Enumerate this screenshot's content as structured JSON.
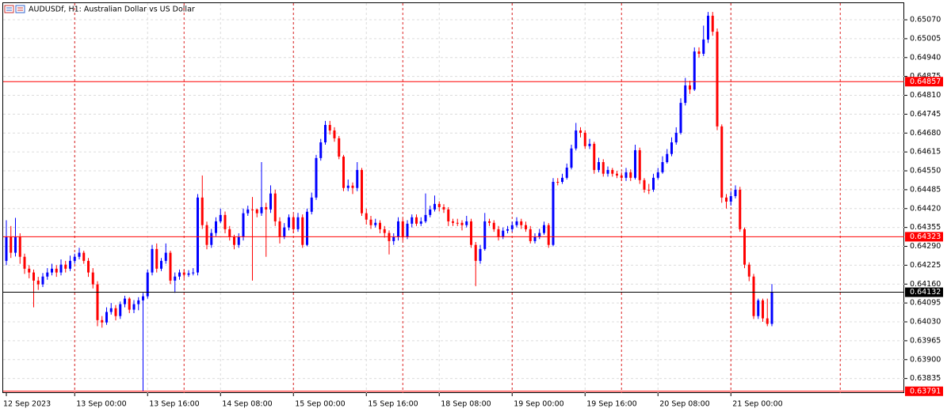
{
  "chart_data": {
    "type": "candlestick",
    "title": "AUDUSDf, H1:  Australian Dollar vs US Dollar",
    "up_color": "#0000ff",
    "down_color": "#ff0000",
    "grid": true,
    "ylim": [
      0.63785,
      0.6513
    ],
    "yticks": [
      {
        "value": 0.6507,
        "label": "0.65070"
      },
      0.65005,
      {
        "value": 0.6494,
        "label": "0.64940"
      },
      0.64875,
      {
        "value": 0.6481,
        "label": "0.64810"
      },
      0.64745,
      {
        "value": 0.6468,
        "label": "0.64680"
      },
      0.64615,
      {
        "value": 0.6455,
        "label": "0.64550"
      },
      0.64485,
      {
        "value": 0.6442,
        "label": "0.64420"
      },
      0.64355,
      {
        "value": 0.6429,
        "label": "0.64290"
      },
      0.64225,
      {
        "value": 0.6416,
        "label": "0.64160"
      },
      0.64095,
      {
        "value": 0.6403,
        "label": "0.64030"
      },
      0.63965,
      {
        "value": 0.639,
        "label": "0.63900"
      },
      0.63835
    ],
    "levels": [
      {
        "value": 0.64857,
        "color": "#ff0000"
      },
      {
        "value": 0.64323,
        "color": "#ff0000"
      },
      {
        "value": 0.64132,
        "color": "#000000"
      },
      {
        "value": 0.63791,
        "color": "#ff0000"
      }
    ],
    "categories": [
      "12 Sep 2023",
      null,
      null,
      null,
      null,
      null,
      null,
      null,
      null,
      null,
      null,
      null,
      null,
      null,
      null,
      "13 Sep 00:00",
      null,
      null,
      null,
      null,
      null,
      null,
      null,
      null,
      null,
      null,
      null,
      null,
      null,
      null,
      null,
      "13 Sep 16:00",
      null,
      null,
      null,
      null,
      null,
      null,
      null,
      null,
      null,
      null,
      null,
      null,
      null,
      null,
      null,
      "14 Sep 08:00",
      null,
      null,
      null,
      null,
      null,
      null,
      null,
      null,
      null,
      null,
      null,
      null,
      null,
      null,
      null,
      "15 Sep 00:00",
      null,
      null,
      null,
      null,
      null,
      null,
      null,
      null,
      null,
      null,
      null,
      null,
      null,
      null,
      null,
      "15 Sep 16:00",
      null,
      null,
      null,
      null,
      null,
      null,
      null,
      null,
      null,
      null,
      null,
      null,
      null,
      null,
      null,
      "18 Sep 08:00",
      null,
      null,
      null,
      null,
      null,
      null,
      null,
      null,
      null,
      null,
      null,
      null,
      null,
      null,
      null,
      "19 Sep 00:00",
      null,
      null,
      null,
      null,
      null,
      null,
      null,
      null,
      null,
      null,
      null,
      null,
      null,
      null,
      null,
      "19 Sep 16:00",
      null,
      null,
      null,
      null,
      null,
      null,
      null,
      null,
      null,
      null,
      null,
      null,
      null,
      null,
      null,
      "20 Sep 08:00",
      null,
      null,
      null,
      null,
      null,
      null,
      null,
      null,
      null,
      null,
      null,
      null,
      null,
      null,
      null,
      "21 Sep 00:00",
      null,
      null,
      null,
      null,
      null,
      null,
      null,
      null,
      null
    ],
    "open": [
      0.6424,
      0.64322,
      0.64268,
      0.64322,
      0.64254,
      0.64213,
      0.642,
      0.64172,
      0.64159,
      0.64186,
      0.642,
      0.64213,
      0.642,
      0.64227,
      0.64213,
      0.6424,
      0.64254,
      0.64268,
      0.6424,
      0.642,
      0.64159,
      0.64036,
      0.64028,
      0.64064,
      0.64077,
      0.6405,
      0.64091,
      0.6411,
      0.64072,
      0.64091,
      0.64104,
      0.64118,
      0.642,
      0.64281,
      0.64213,
      0.6424,
      0.64268,
      0.64172,
      0.64186,
      0.642,
      0.64192,
      0.64197,
      0.642,
      0.64458,
      0.64363,
      0.64295,
      0.64336,
      0.64376,
      0.64398,
      0.64349,
      0.64322,
      0.64295,
      0.64322,
      0.64404,
      0.64417,
      0.64417,
      0.64404,
      0.64425,
      0.64417,
      0.64472,
      0.64376,
      0.64322,
      0.64355,
      0.6439,
      0.64349,
      0.6439,
      0.64295,
      0.64409,
      0.64458,
      0.64594,
      0.64648,
      0.64708,
      0.64689,
      0.64662,
      0.64599,
      0.64491,
      0.64499,
      0.64491,
      0.64553,
      0.64404,
      0.64382,
      0.64363,
      0.64371,
      0.64349,
      0.64336,
      0.64308,
      0.64322,
      0.64376,
      0.64322,
      0.64368,
      0.6439,
      0.64368,
      0.64376,
      0.64398,
      0.64417,
      0.64436,
      0.64425,
      0.64417,
      0.64376,
      0.64371,
      0.64371,
      0.64363,
      0.64376,
      0.64295,
      0.6424,
      0.64281,
      0.64376,
      0.64371,
      0.64349,
      0.64322,
      0.64344,
      0.64349,
      0.64363,
      0.64376,
      0.64363,
      0.64349,
      0.64308,
      0.64322,
      0.64336,
      0.64363,
      0.64295,
      0.64512,
      0.64512,
      0.64526,
      0.64561,
      0.64627,
      0.64689,
      0.64681,
      0.64635,
      0.64643,
      0.64553,
      0.6458,
      0.6454,
      0.64553,
      0.6454,
      0.64534,
      0.64526,
      0.64545,
      0.64526,
      0.64621,
      0.64518,
      0.64485,
      0.64485,
      0.64526,
      0.64545,
      0.6458,
      0.64608,
      0.64648,
      0.64681,
      0.64784,
      0.64844,
      0.6483,
      0.64961,
      0.64953,
      0.65002,
      0.65084,
      0.65029,
      0.64703,
      0.64458,
      0.64444,
      0.64463,
      0.64485,
      0.64349,
      0.64227,
      0.64186,
      0.6405,
      0.64104,
      0.64042,
      0.64023
    ],
    "high": [
      0.6438,
      0.6436,
      0.64388,
      0.64335,
      0.64265,
      0.64225,
      0.6421,
      0.64185,
      0.64198,
      0.64215,
      0.6423,
      0.64225,
      0.64245,
      0.6424,
      0.64258,
      0.64265,
      0.64285,
      0.64275,
      0.6425,
      0.64215,
      0.6417,
      0.6405,
      0.6408,
      0.64095,
      0.64088,
      0.641,
      0.6412,
      0.64115,
      0.64105,
      0.64115,
      0.6413,
      0.6421,
      0.64295,
      0.643,
      0.6425,
      0.643,
      0.64275,
      0.642,
      0.6421,
      0.6421,
      0.64208,
      0.64215,
      0.6447,
      0.64534,
      0.64375,
      0.6435,
      0.6439,
      0.6442,
      0.6441,
      0.6436,
      0.6433,
      0.64335,
      0.6442,
      0.6443,
      0.6446,
      0.6442,
      0.6458,
      0.6444,
      0.645,
      0.64485,
      0.6439,
      0.6437,
      0.644,
      0.644,
      0.64405,
      0.644,
      0.6442,
      0.64475,
      0.64605,
      0.6466,
      0.64722,
      0.64722,
      0.647,
      0.6467,
      0.64605,
      0.6452,
      0.6451,
      0.6458,
      0.6456,
      0.6442,
      0.64395,
      0.64385,
      0.6438,
      0.6436,
      0.64345,
      0.64335,
      0.6439,
      0.64385,
      0.6438,
      0.644,
      0.644,
      0.6439,
      0.64472,
      0.6443,
      0.64465,
      0.64445,
      0.64435,
      0.64425,
      0.64385,
      0.64385,
      0.6438,
      0.64395,
      0.64385,
      0.64305,
      0.64295,
      0.64405,
      0.64385,
      0.6438,
      0.6436,
      0.64355,
      0.6436,
      0.64375,
      0.6439,
      0.64385,
      0.64375,
      0.6436,
      0.64335,
      0.6435,
      0.64375,
      0.6437,
      0.64525,
      0.64525,
      0.6454,
      0.64575,
      0.6464,
      0.64715,
      0.647,
      0.6469,
      0.6466,
      0.6465,
      0.64595,
      0.6459,
      0.64565,
      0.6456,
      0.6455,
      0.64545,
      0.6456,
      0.64555,
      0.6464,
      0.6463,
      0.64525,
      0.64505,
      0.6454,
      0.6456,
      0.646,
      0.64625,
      0.64665,
      0.647,
      0.648,
      0.6487,
      0.6486,
      0.64975,
      0.64975,
      0.6505,
      0.65097,
      0.65097,
      0.6504,
      0.6471,
      0.6447,
      0.6448,
      0.645,
      0.64495,
      0.64355,
      0.64235,
      0.64195,
      0.6411,
      0.6411,
      0.6411,
      0.6416
    ],
    "low": [
      0.64225,
      0.6425,
      0.64255,
      0.6423,
      0.64195,
      0.6418,
      0.6408,
      0.6414,
      0.6415,
      0.64175,
      0.6419,
      0.64185,
      0.6419,
      0.642,
      0.64205,
      0.6423,
      0.64245,
      0.6423,
      0.64185,
      0.64145,
      0.64015,
      0.6401,
      0.6402,
      0.64055,
      0.64035,
      0.6404,
      0.6408,
      0.6406,
      0.6406,
      0.6407,
      0.63791,
      0.6411,
      0.6419,
      0.642,
      0.64205,
      0.6423,
      0.6416,
      0.6413,
      0.64175,
      0.6418,
      0.64185,
      0.6419,
      0.6419,
      0.6435,
      0.6428,
      0.64285,
      0.64325,
      0.6437,
      0.64335,
      0.6431,
      0.6428,
      0.64285,
      0.6431,
      0.64395,
      0.64172,
      0.6439,
      0.64395,
      0.64254,
      0.64405,
      0.6436,
      0.643,
      0.64315,
      0.64345,
      0.64335,
      0.6434,
      0.64285,
      0.6429,
      0.644,
      0.6445,
      0.64585,
      0.6464,
      0.64675,
      0.6465,
      0.6459,
      0.6448,
      0.6448,
      0.6447,
      0.6448,
      0.64395,
      0.64365,
      0.6435,
      0.64355,
      0.64335,
      0.6432,
      0.64262,
      0.64295,
      0.6431,
      0.6431,
      0.64315,
      0.64355,
      0.6436,
      0.6436,
      0.6437,
      0.6439,
      0.6441,
      0.6441,
      0.64405,
      0.6436,
      0.6436,
      0.6436,
      0.64345,
      0.64355,
      0.64285,
      0.64153,
      0.6423,
      0.64275,
      0.6436,
      0.6434,
      0.6431,
      0.64315,
      0.64335,
      0.6434,
      0.64355,
      0.6435,
      0.6434,
      0.643,
      0.643,
      0.64315,
      0.6433,
      0.64285,
      0.6429,
      0.645,
      0.64505,
      0.6452,
      0.64555,
      0.6462,
      0.64665,
      0.64625,
      0.64625,
      0.6454,
      0.64545,
      0.6453,
      0.6453,
      0.6453,
      0.64525,
      0.64515,
      0.64515,
      0.64515,
      0.6452,
      0.64505,
      0.64475,
      0.6447,
      0.64478,
      0.6452,
      0.6454,
      0.64575,
      0.646,
      0.6464,
      0.64675,
      0.64775,
      0.64815,
      0.64825,
      0.6494,
      0.64945,
      0.6499,
      0.65015,
      0.6469,
      0.6444,
      0.6442,
      0.6443,
      0.64455,
      0.6434,
      0.64215,
      0.6417,
      0.6404,
      0.6404,
      0.6403,
      0.64015,
      0.64015
    ],
    "close": [
      0.64322,
      0.64268,
      0.64322,
      0.64254,
      0.64213,
      0.642,
      0.64172,
      0.64159,
      0.64186,
      0.642,
      0.64213,
      0.642,
      0.64227,
      0.64213,
      0.6424,
      0.64254,
      0.64268,
      0.6424,
      0.642,
      0.64159,
      0.64036,
      0.64028,
      0.64064,
      0.64077,
      0.6405,
      0.64091,
      0.6411,
      0.64072,
      0.64091,
      0.64104,
      0.64118,
      0.642,
      0.64281,
      0.64213,
      0.6424,
      0.64268,
      0.64172,
      0.64186,
      0.642,
      0.64192,
      0.64197,
      0.642,
      0.64458,
      0.64363,
      0.64295,
      0.64336,
      0.64376,
      0.64398,
      0.64349,
      0.64322,
      0.64295,
      0.64322,
      0.64404,
      0.64417,
      0.64417,
      0.64404,
      0.64425,
      0.64417,
      0.64472,
      0.64376,
      0.64322,
      0.64355,
      0.6439,
      0.64349,
      0.6439,
      0.64295,
      0.64409,
      0.64458,
      0.64594,
      0.64648,
      0.64708,
      0.64689,
      0.64662,
      0.64599,
      0.64491,
      0.64499,
      0.64491,
      0.64553,
      0.64404,
      0.64382,
      0.64363,
      0.64371,
      0.64349,
      0.64336,
      0.64308,
      0.64322,
      0.64376,
      0.64322,
      0.64368,
      0.6439,
      0.64368,
      0.64376,
      0.64398,
      0.64417,
      0.64436,
      0.64425,
      0.64417,
      0.64376,
      0.64371,
      0.64371,
      0.64363,
      0.64376,
      0.64295,
      0.6424,
      0.64281,
      0.64376,
      0.64371,
      0.64349,
      0.64322,
      0.64344,
      0.64349,
      0.64363,
      0.64376,
      0.64363,
      0.64349,
      0.64308,
      0.64322,
      0.64336,
      0.64363,
      0.64295,
      0.64512,
      0.64512,
      0.64526,
      0.64561,
      0.64627,
      0.64689,
      0.64681,
      0.64635,
      0.64643,
      0.64553,
      0.6458,
      0.6454,
      0.64553,
      0.6454,
      0.64534,
      0.64526,
      0.64545,
      0.64526,
      0.64621,
      0.64518,
      0.64485,
      0.64485,
      0.64526,
      0.64545,
      0.6458,
      0.64608,
      0.64648,
      0.64681,
      0.64784,
      0.64844,
      0.6483,
      0.64961,
      0.64953,
      0.65002,
      0.65084,
      0.65029,
      0.64703,
      0.64458,
      0.64444,
      0.64463,
      0.64485,
      0.64349,
      0.64227,
      0.64186,
      0.6405,
      0.64104,
      0.64042,
      0.64023,
      0.64132
    ]
  }
}
